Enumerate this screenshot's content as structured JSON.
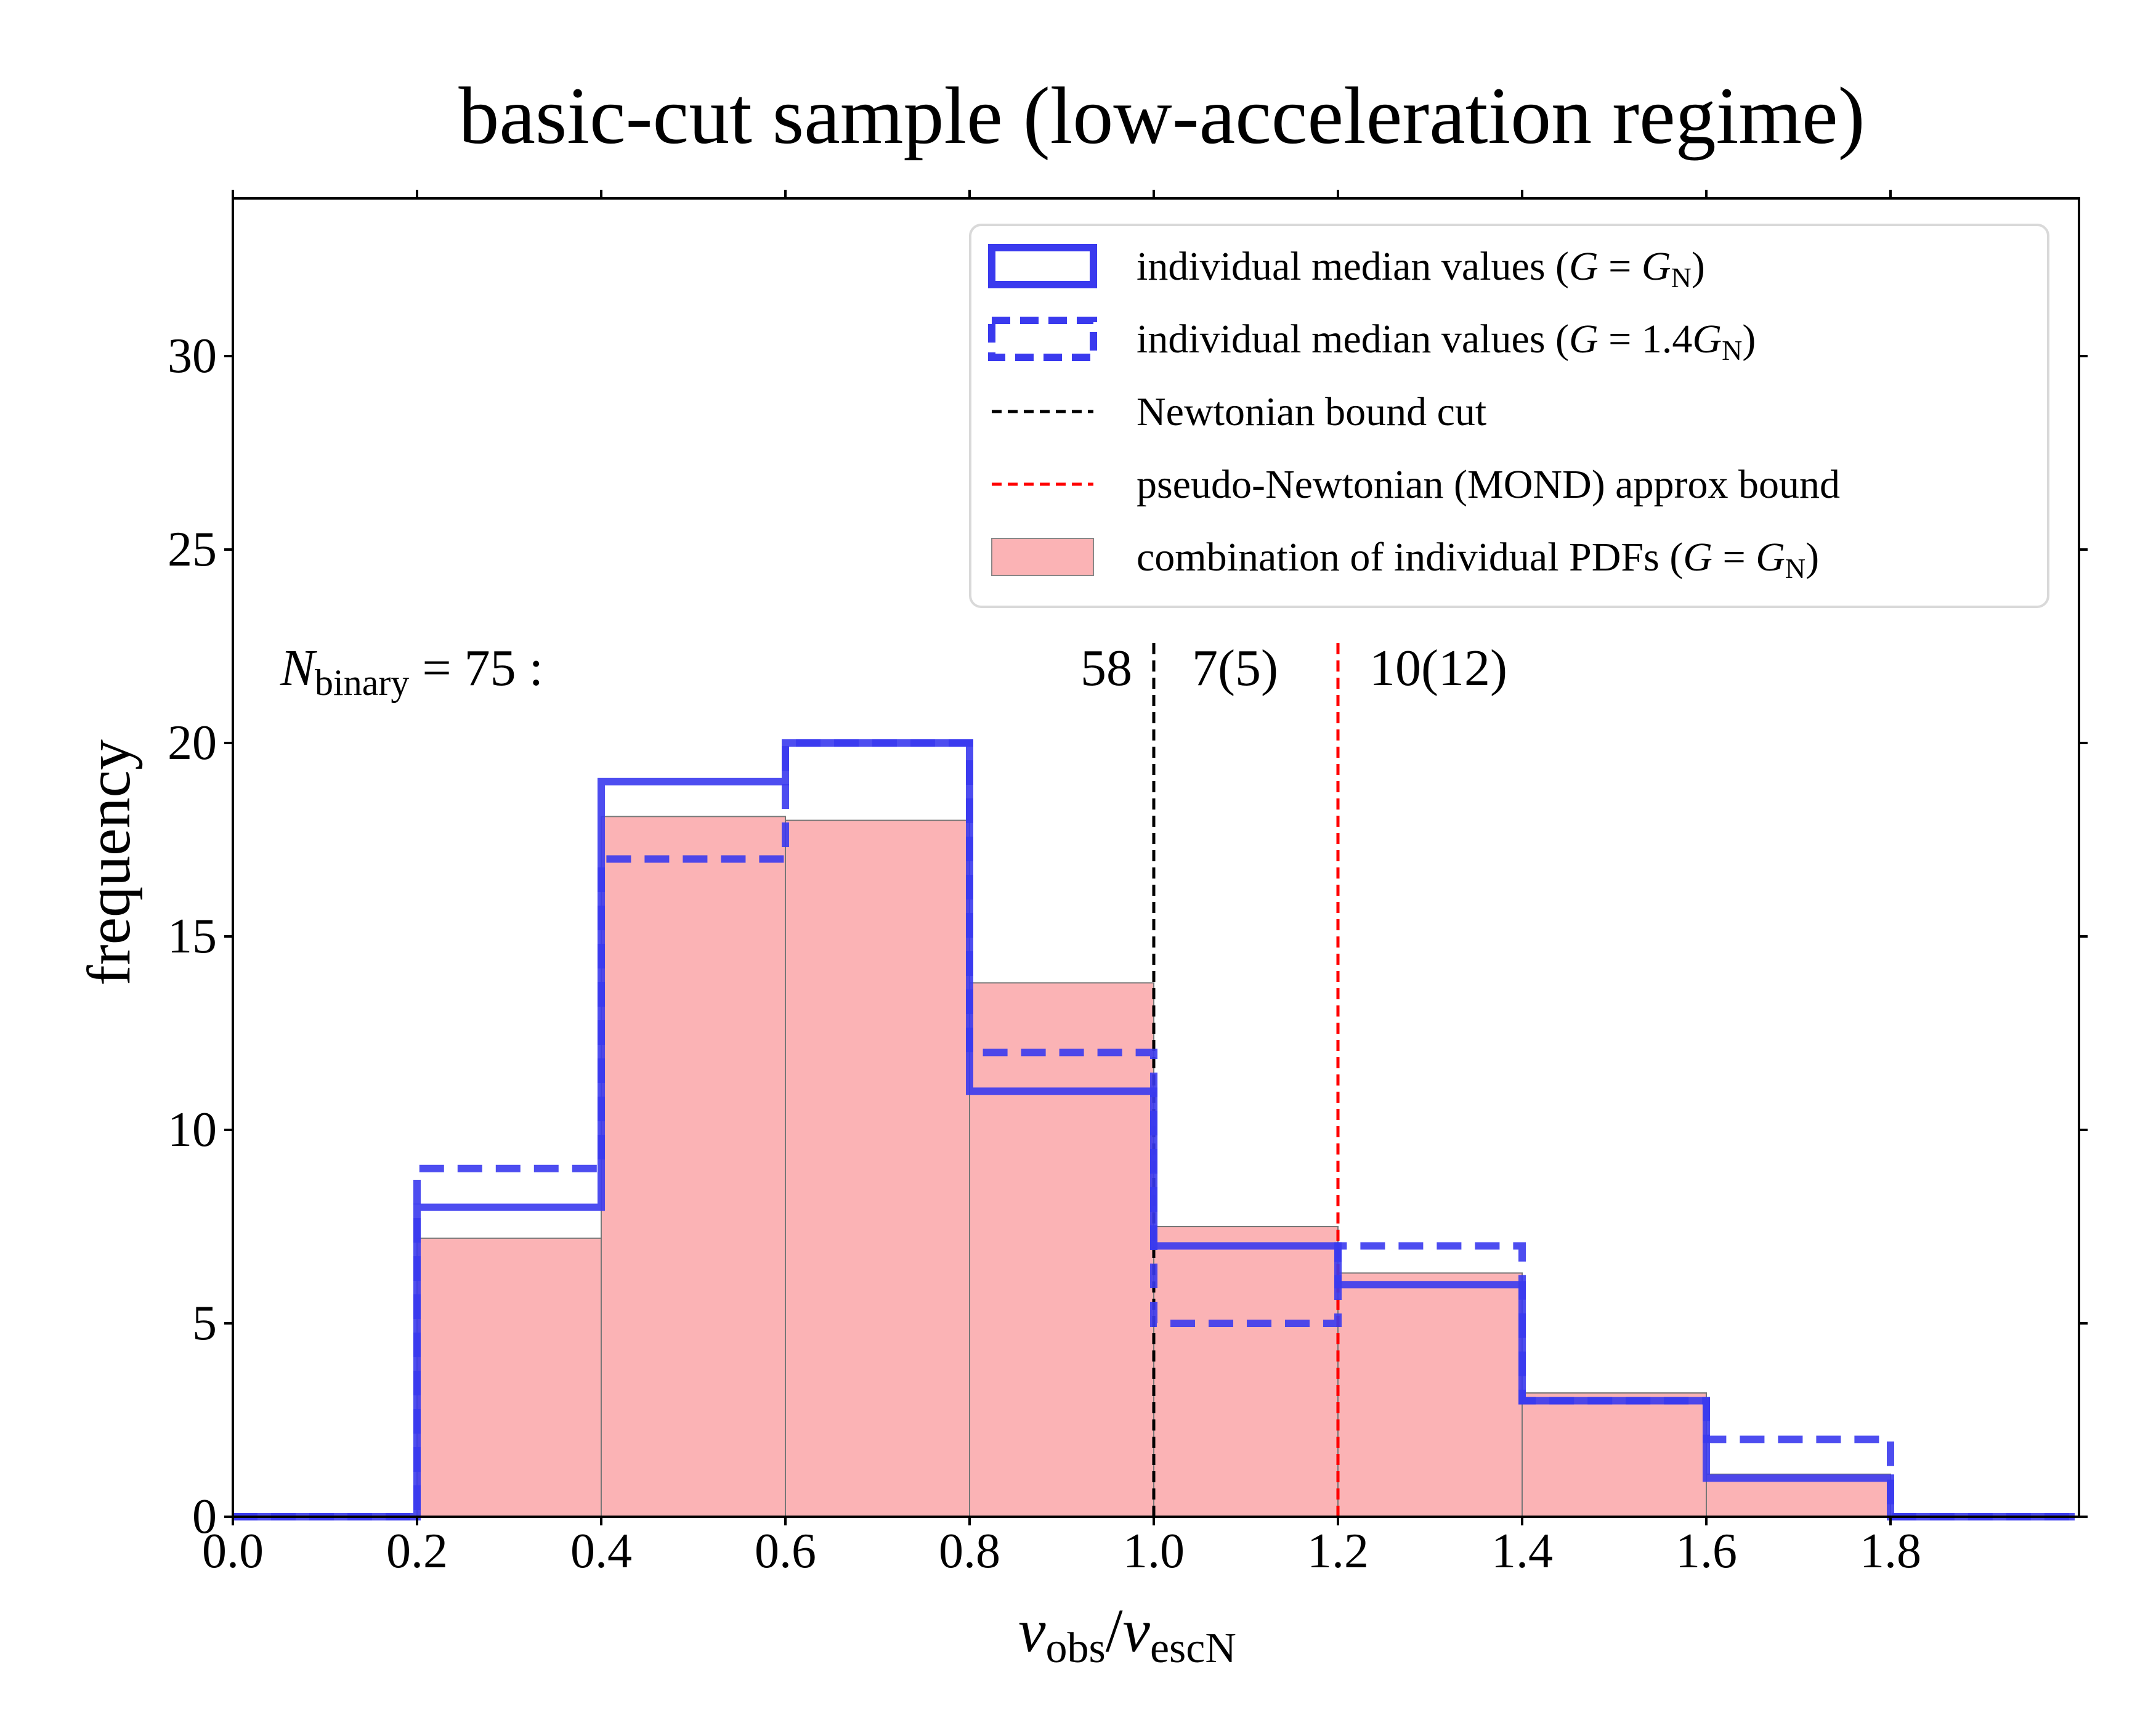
{
  "chart_data": {
    "type": "histogram",
    "title": "basic-cut sample (low-acceleration regime)",
    "xlabel": "v_obs/v_escN",
    "ylabel": "frequency",
    "xlim": [
      0.0,
      2.0
    ],
    "ylim": [
      0,
      34
    ],
    "xticks": [
      "0.0",
      "0.2",
      "0.4",
      "0.6",
      "0.8",
      "1.0",
      "1.2",
      "1.4",
      "1.6",
      "1.8"
    ],
    "yticks": [
      "0",
      "5",
      "10",
      "15",
      "20",
      "25",
      "30"
    ],
    "bin_edges": [
      0.0,
      0.2,
      0.4,
      0.6,
      0.8,
      1.0,
      1.2,
      1.4,
      1.6,
      1.8,
      2.0
    ],
    "series": [
      {
        "name": "individual median values (G = G_N)",
        "style": "solid-step",
        "color": "#3a3aee",
        "values": [
          0,
          8,
          19,
          20,
          11,
          7,
          6,
          3,
          1,
          0
        ]
      },
      {
        "name": "individual median values (G = 1.4G_N)",
        "style": "dashed-step",
        "color": "#3a3aee",
        "values": [
          0,
          9,
          17,
          20,
          12,
          5,
          7,
          3,
          2,
          0
        ]
      },
      {
        "name": "combination of individual PDFs (G = G_N)",
        "style": "filled-bars",
        "color": "#fbb3b5",
        "values": [
          0,
          7.2,
          18.1,
          18.0,
          13.8,
          7.5,
          6.3,
          3.2,
          1.1,
          0
        ]
      }
    ],
    "vlines": [
      {
        "name": "Newtonian bound cut",
        "x": 1.0,
        "color": "#000000"
      },
      {
        "name": "pseudo-Newtonian (MOND) approx bound",
        "x": 1.2,
        "color": "#ff0000"
      }
    ],
    "legend": {
      "position": "top-right",
      "entries": [
        "individual median values (G = G_N)",
        "individual median values (G = 1.4G_N)",
        "Newtonian bound cut",
        "pseudo-Newtonian (MOND) approx bound",
        "combination of individual PDFs (G = G_N)"
      ]
    },
    "annotations": {
      "n_binary": "N_binary = 75 :",
      "count_left": "58",
      "count_mid": "7(5)",
      "count_right": "10(12)"
    }
  }
}
